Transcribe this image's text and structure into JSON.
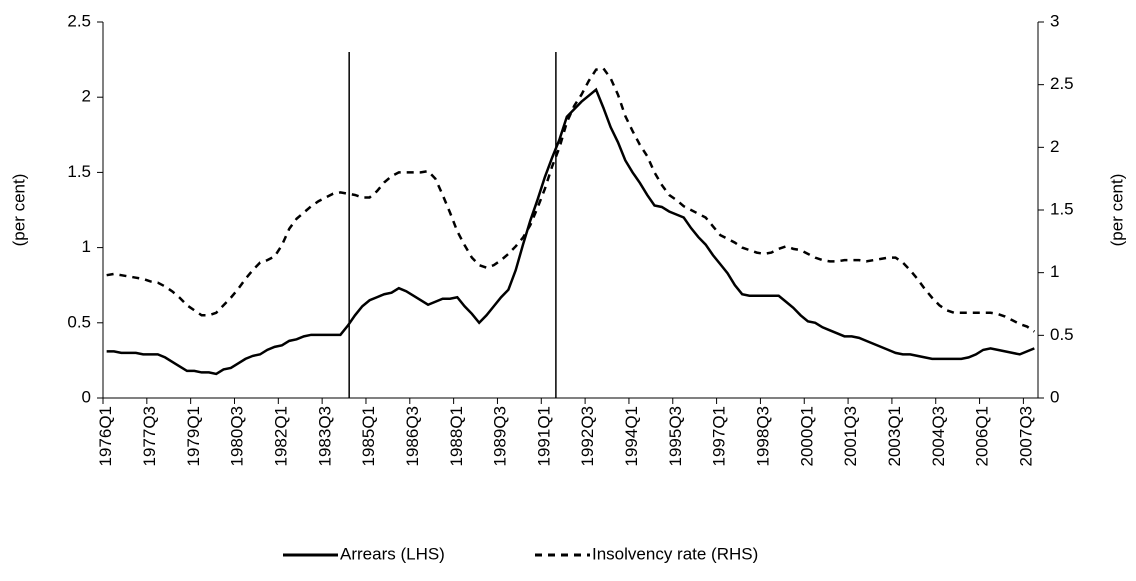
{
  "chart_data": {
    "type": "line",
    "categories": [
      "1976Q1",
      null,
      null,
      null,
      null,
      null,
      "1977Q3",
      null,
      null,
      null,
      null,
      null,
      "1979Q1",
      null,
      null,
      null,
      null,
      null,
      "1980Q3",
      null,
      null,
      null,
      null,
      null,
      "1982Q1",
      null,
      null,
      null,
      null,
      null,
      "1983Q3",
      null,
      null,
      null,
      null,
      null,
      "1985Q1",
      null,
      null,
      null,
      null,
      null,
      "1986Q3",
      null,
      null,
      null,
      null,
      null,
      "1988Q1",
      null,
      null,
      null,
      null,
      null,
      "1989Q3",
      null,
      null,
      null,
      null,
      null,
      "1991Q1",
      null,
      null,
      null,
      null,
      null,
      "1992Q3",
      null,
      null,
      null,
      null,
      null,
      "1994Q1",
      null,
      null,
      null,
      null,
      null,
      "1995Q3",
      null,
      null,
      null,
      null,
      null,
      "1997Q1",
      null,
      null,
      null,
      null,
      null,
      "1998Q3",
      null,
      null,
      null,
      null,
      null,
      "2000Q1",
      null,
      null,
      null,
      null,
      null,
      "2001Q3",
      null,
      null,
      null,
      null,
      null,
      "2003Q1",
      null,
      null,
      null,
      null,
      null,
      "2004Q3",
      null,
      null,
      null,
      null,
      null,
      "2006Q1",
      null,
      null,
      null,
      null,
      null,
      "2007Q3",
      null
    ],
    "series": [
      {
        "name": "Arrears (LHS)",
        "color": "#000000",
        "style": "solid",
        "values": [
          0.31,
          0.31,
          0.3,
          0.3,
          0.3,
          0.29,
          0.29,
          0.29,
          0.27,
          0.24,
          0.21,
          0.18,
          0.18,
          0.17,
          0.17,
          0.16,
          0.19,
          0.2,
          0.23,
          0.26,
          0.28,
          0.29,
          0.32,
          0.34,
          0.35,
          0.38,
          0.39,
          0.41,
          0.42,
          0.42,
          0.42,
          0.42,
          0.42,
          0.48,
          0.55,
          0.61,
          0.65,
          0.67,
          0.69,
          0.7,
          0.73,
          0.71,
          0.68,
          0.65,
          0.62,
          0.64,
          0.66,
          0.66,
          0.67,
          0.61,
          0.56,
          0.5,
          0.55,
          0.61,
          0.67,
          0.72,
          0.85,
          1.02,
          1.18,
          1.32,
          1.47,
          1.6,
          1.72,
          1.87,
          1.92,
          1.97,
          2.01,
          2.05,
          1.93,
          1.8,
          1.7,
          1.58,
          1.5,
          1.43,
          1.35,
          1.28,
          1.27,
          1.24,
          1.22,
          1.2,
          1.13,
          1.07,
          1.02,
          0.95,
          0.89,
          0.83,
          0.75,
          0.69,
          0.68,
          0.68,
          0.68,
          0.68,
          0.68,
          0.64,
          0.6,
          0.55,
          0.51,
          0.5,
          0.47,
          0.45,
          0.43,
          0.41,
          0.41,
          0.4,
          0.38,
          0.36,
          0.34,
          0.32,
          0.3,
          0.29,
          0.29,
          0.28,
          0.27,
          0.26,
          0.26,
          0.26,
          0.26,
          0.26,
          0.27,
          0.29,
          0.32,
          0.33,
          0.32,
          0.31,
          0.3,
          0.29,
          0.31,
          0.33
        ]
      },
      {
        "name": "Insolvency rate (RHS)",
        "color": "#000000",
        "style": "dashed",
        "axis": "y2",
        "values": [
          0.98,
          0.99,
          0.98,
          0.97,
          0.96,
          0.95,
          0.93,
          0.92,
          0.89,
          0.85,
          0.8,
          0.74,
          0.7,
          0.66,
          0.66,
          0.68,
          0.74,
          0.8,
          0.87,
          0.95,
          1.02,
          1.08,
          1.1,
          1.13,
          1.22,
          1.35,
          1.43,
          1.48,
          1.53,
          1.57,
          1.6,
          1.63,
          1.64,
          1.63,
          1.62,
          1.6,
          1.6,
          1.65,
          1.72,
          1.77,
          1.8,
          1.8,
          1.8,
          1.8,
          1.81,
          1.75,
          1.62,
          1.48,
          1.33,
          1.22,
          1.12,
          1.06,
          1.04,
          1.06,
          1.1,
          1.15,
          1.21,
          1.28,
          1.38,
          1.52,
          1.67,
          1.85,
          2.0,
          2.2,
          2.33,
          2.42,
          2.53,
          2.62,
          2.63,
          2.55,
          2.42,
          2.25,
          2.13,
          2.02,
          1.93,
          1.8,
          1.7,
          1.62,
          1.58,
          1.53,
          1.5,
          1.47,
          1.44,
          1.37,
          1.3,
          1.27,
          1.24,
          1.2,
          1.18,
          1.16,
          1.15,
          1.16,
          1.19,
          1.21,
          1.19,
          1.18,
          1.15,
          1.12,
          1.1,
          1.09,
          1.09,
          1.1,
          1.1,
          1.1,
          1.09,
          1.1,
          1.11,
          1.12,
          1.12,
          1.08,
          1.02,
          0.95,
          0.87,
          0.8,
          0.74,
          0.7,
          0.68,
          0.68,
          0.68,
          0.68,
          0.68,
          0.68,
          0.67,
          0.65,
          0.62,
          0.59,
          0.57,
          0.53
        ]
      }
    ],
    "ylabel": "(per cent)",
    "y2label": "(per cent)",
    "ylim": [
      0,
      2.5
    ],
    "yticks": [
      0,
      0.5,
      1,
      1.5,
      2,
      2.5
    ],
    "y2lim": [
      0,
      3
    ],
    "y2ticks": [
      0,
      0.5,
      1,
      1.5,
      2,
      2.5,
      3
    ],
    "vertical_lines": [
      33.2,
      61.5
    ],
    "legend": "bottom"
  }
}
